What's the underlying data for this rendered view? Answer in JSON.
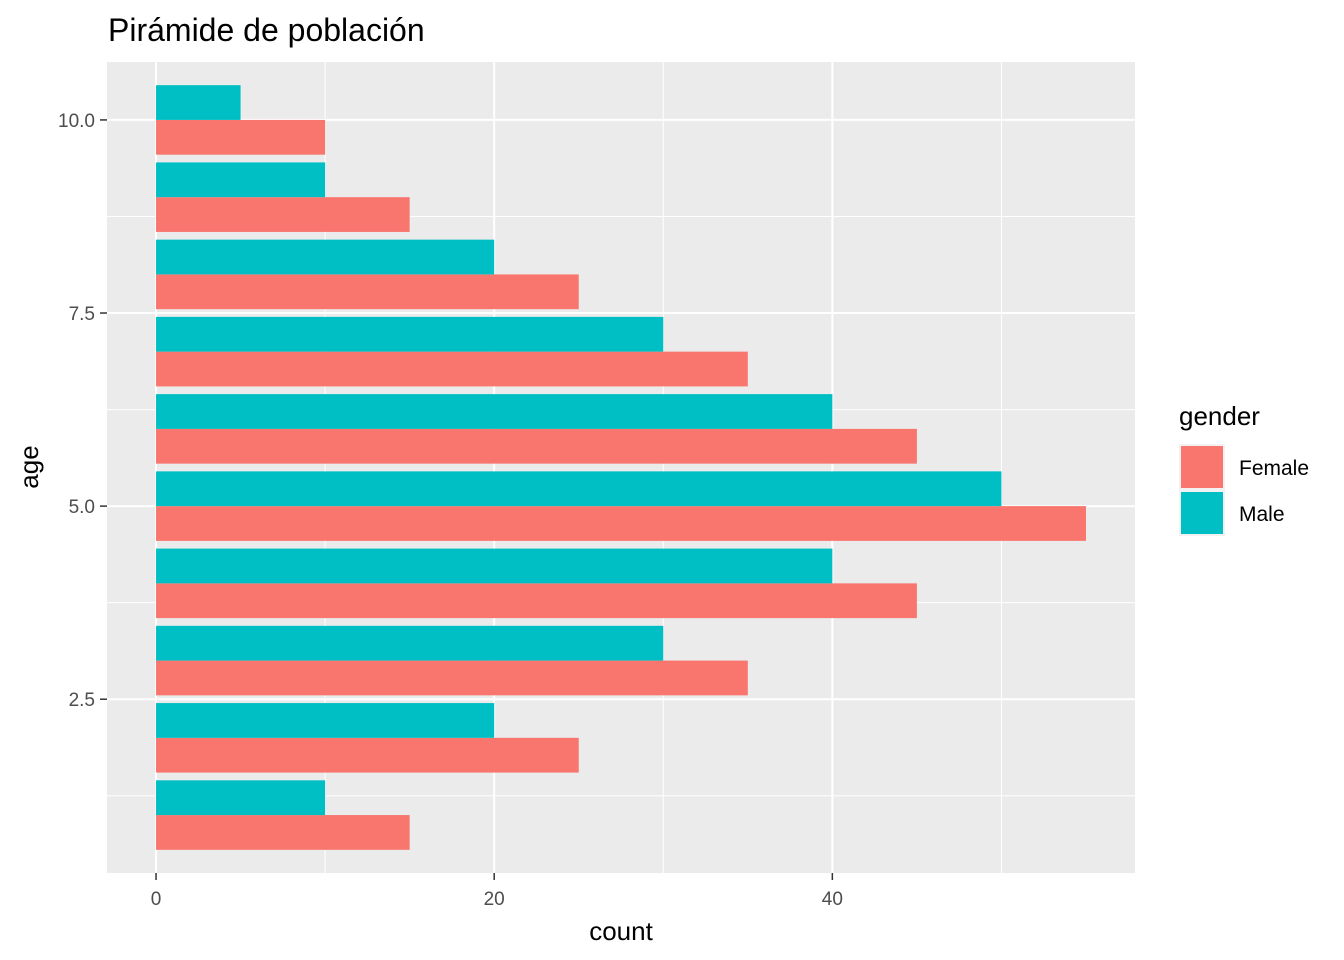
{
  "chart_data": {
    "type": "bar",
    "orientation": "horizontal",
    "title": "Pirámide de población",
    "xlabel": "count",
    "ylabel": "age",
    "xlim": [
      -2.9,
      57.9
    ],
    "ylim": [
      0.25,
      10.75
    ],
    "x_ticks": [
      0,
      20,
      40
    ],
    "x_tick_labels": [
      "0",
      "20",
      "40"
    ],
    "y_ticks": [
      2.5,
      5.0,
      7.5,
      10.0
    ],
    "y_tick_labels": [
      "2.5",
      "5.0",
      "7.5",
      "10.0"
    ],
    "categories": [
      1,
      2,
      3,
      4,
      5,
      6,
      7,
      8,
      9,
      10
    ],
    "bar_width": 0.9,
    "series": [
      {
        "name": "Female",
        "color": "#F8766D",
        "values": [
          15,
          25,
          35,
          45,
          55,
          45,
          35,
          25,
          15,
          10
        ]
      },
      {
        "name": "Male",
        "color": "#00BFC4",
        "values": [
          10,
          20,
          30,
          40,
          50,
          40,
          30,
          20,
          10,
          5
        ]
      }
    ],
    "grid": true,
    "legend": {
      "title": "gender",
      "placement": "right"
    },
    "panel_background": "#EBEBEB",
    "grid_color": "#FFFFFF"
  }
}
